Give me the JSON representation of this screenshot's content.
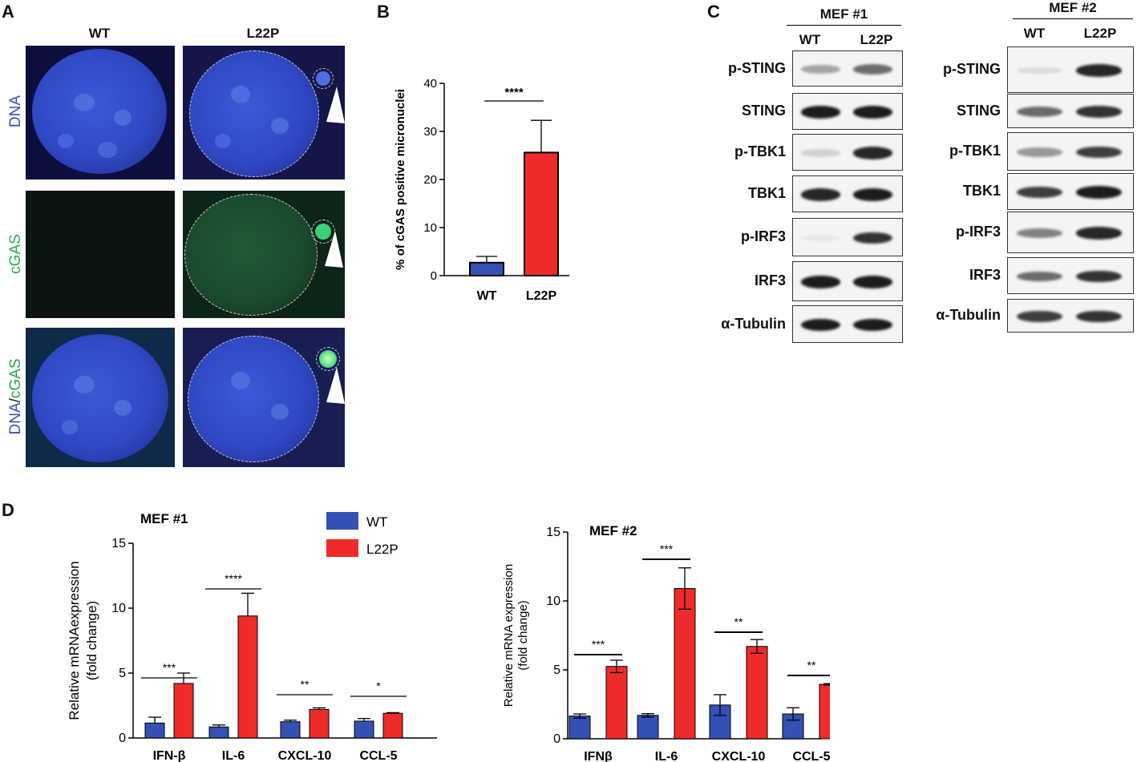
{
  "panel_a": {
    "letter": "A",
    "col_headers": [
      "WT",
      "L22P"
    ],
    "row_labels": [
      {
        "parts": [
          {
            "text": "DNA",
            "color": "#3a4fb5"
          }
        ]
      },
      {
        "parts": [
          {
            "text": "cGAS",
            "color": "#2aa84a"
          }
        ]
      },
      {
        "parts": [
          {
            "text": "DNA",
            "color": "#3a4fb5"
          },
          {
            "text": "/",
            "color": "#222222"
          },
          {
            "text": "cGAS",
            "color": "#2aa84a"
          }
        ]
      }
    ]
  },
  "panel_b": {
    "letter": "B"
  },
  "panel_c": {
    "letter": "C",
    "groups": [
      {
        "title": "MEF #1",
        "lanes": [
          "WT",
          "L22P"
        ],
        "proteins": [
          "p-STING",
          "STING",
          "p-TBK1",
          "TBK1",
          "p-IRF3",
          "IRF3",
          "α-Tubulin"
        ],
        "band_intensity": [
          [
            0.35,
            0.6
          ],
          [
            0.95,
            0.95
          ],
          [
            0.15,
            0.9
          ],
          [
            0.9,
            0.95
          ],
          [
            0.05,
            0.85
          ],
          [
            0.95,
            0.95
          ],
          [
            0.95,
            0.95
          ]
        ]
      },
      {
        "title": "MEF #2",
        "lanes": [
          "WT",
          "L22P"
        ],
        "proteins": [
          "p-STING",
          "STING",
          "p-TBK1",
          "TBK1",
          "p-IRF3",
          "IRF3",
          "α-Tubulin"
        ],
        "band_intensity": [
          [
            0.1,
            0.9
          ],
          [
            0.6,
            0.85
          ],
          [
            0.4,
            0.8
          ],
          [
            0.8,
            0.95
          ],
          [
            0.5,
            0.9
          ],
          [
            0.6,
            0.85
          ],
          [
            0.8,
            0.85
          ]
        ]
      }
    ]
  },
  "panel_d": {
    "letter": "D"
  },
  "colors": {
    "wt": "#3350b5",
    "l22p": "#ee2b2b",
    "micro_green": "#52e08a"
  },
  "chart_data": [
    {
      "id": "B",
      "type": "bar",
      "categories": [
        "WT",
        "L22P"
      ],
      "values": [
        2.7,
        25.6
      ],
      "errors": [
        1.3,
        6.7
      ],
      "ylabel": "% of cGAS positive micronuclei",
      "xlabel": "",
      "ylim": [
        0,
        40
      ],
      "yticks": [
        0,
        10,
        20,
        30,
        40
      ],
      "significance": [
        {
          "pair": [
            0,
            1
          ],
          "label": "****"
        }
      ]
    },
    {
      "id": "D1",
      "type": "bar",
      "title": "MEF #1",
      "categories": [
        "IFN-β",
        "IL-6",
        "CXCL-10",
        "CCL-5"
      ],
      "series": [
        {
          "name": "WT",
          "values": [
            1.15,
            0.85,
            1.25,
            1.3
          ],
          "errors": [
            0.45,
            0.15,
            0.12,
            0.2
          ]
        },
        {
          "name": "L22P",
          "values": [
            4.2,
            9.4,
            2.2,
            1.9
          ],
          "errors": [
            0.8,
            1.75,
            0.12,
            0.05
          ]
        }
      ],
      "ylabel_lines": [
        "Relative mRNAexpression",
        "(fold change)"
      ],
      "ylim": [
        0,
        15
      ],
      "yticks": [
        0,
        5,
        10,
        15
      ],
      "significance": [
        "***",
        "****",
        "**",
        "*"
      ],
      "legend": "top-right"
    },
    {
      "id": "D2",
      "type": "bar",
      "title": "MEF #2",
      "categories": [
        "IFNβ",
        "IL-6",
        "CXCL-10",
        "CCL-5"
      ],
      "series": [
        {
          "name": "WT",
          "values": [
            1.65,
            1.7,
            2.45,
            1.8
          ],
          "errors": [
            0.15,
            0.12,
            0.75,
            0.45
          ]
        },
        {
          "name": "L22P",
          "values": [
            5.25,
            10.9,
            6.7,
            3.95
          ],
          "errors": [
            0.45,
            1.5,
            0.5,
            0.05
          ]
        }
      ],
      "ylabel_lines": [
        "Relative mRNA expression",
        "(fold change)"
      ],
      "ylim": [
        0,
        15
      ],
      "yticks": [
        0,
        5,
        10,
        15
      ],
      "significance": [
        "***",
        "***",
        "**",
        "**"
      ]
    }
  ]
}
